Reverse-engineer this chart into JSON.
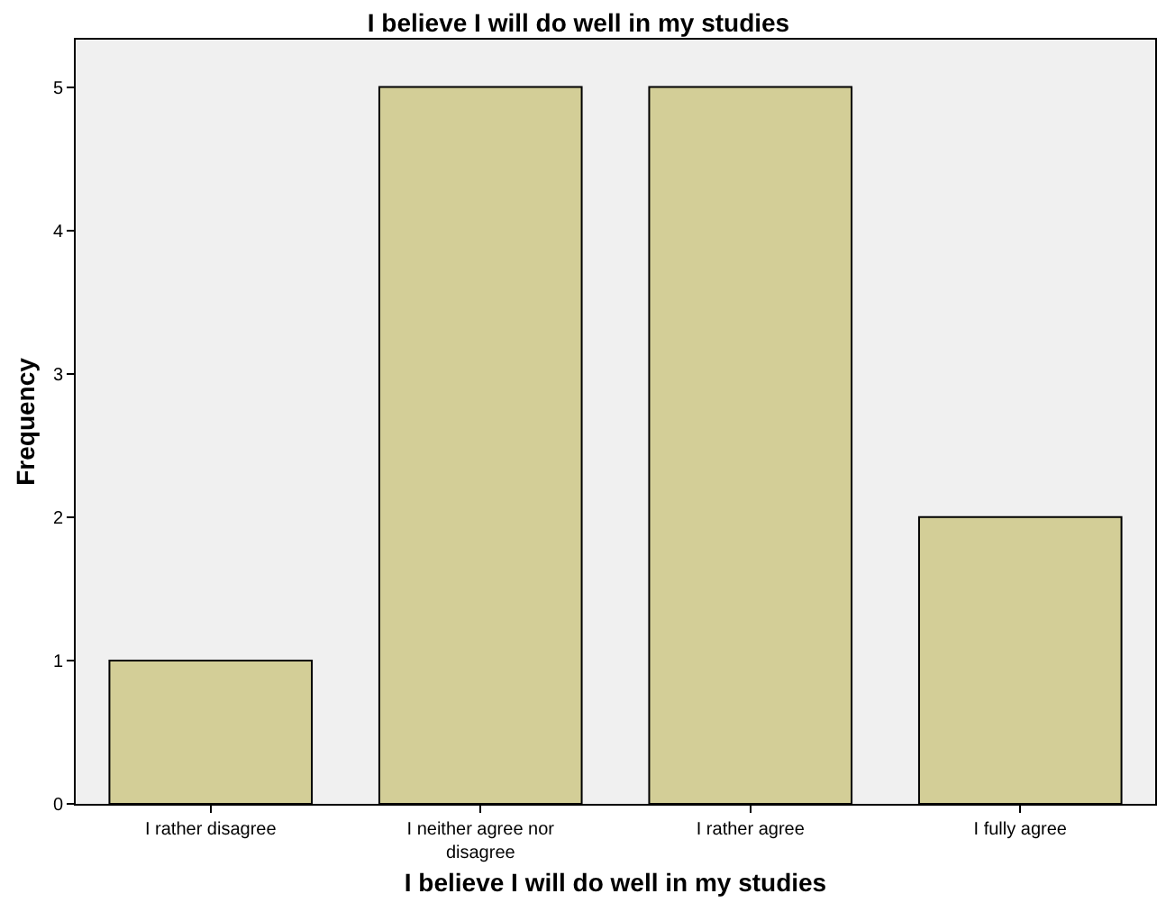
{
  "chart_data": {
    "type": "bar",
    "title": "I believe I will do well in my studies",
    "xlabel": "I believe I will do well in my studies",
    "ylabel": "Frequency",
    "categories": [
      "I rather disagree",
      "I neither agree nor disagree",
      "I rather agree",
      "I fully agree"
    ],
    "values": [
      1,
      5,
      5,
      2
    ],
    "color": "#d3ce97",
    "ylim": [
      0,
      5.33
    ],
    "yticks": [
      0,
      1,
      2,
      3,
      4,
      5
    ],
    "grid": false
  }
}
